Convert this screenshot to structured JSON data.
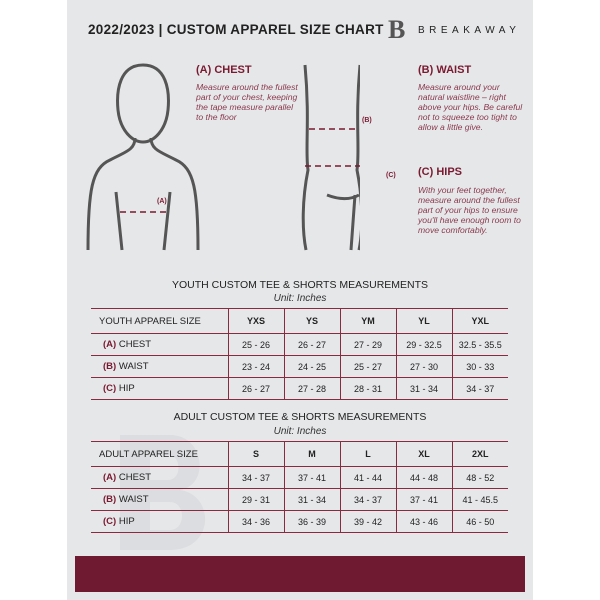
{
  "header": {
    "title": "2022/2023 | CUSTOM APPAREL SIZE CHART",
    "brand": "BREAKAWAY",
    "logo_letter": "B"
  },
  "guide": {
    "chest": {
      "title": "(A) CHEST",
      "marker": "(A)",
      "text": "Measure around the fullest part of your chest, keeping the tape measure parallel to the floor"
    },
    "waist": {
      "title": "(B) WAIST",
      "marker": "(B)",
      "text": "Measure around your natural waistline – right above your hips. Be careful not to squeeze too tight to allow a little give."
    },
    "hips": {
      "title": "(C) HIPS",
      "marker": "(C)",
      "text": "With your feet together, measure around the fullest part of your hips to ensure you'll have enough room to move comfortably."
    }
  },
  "youth": {
    "title": "YOUTH CUSTOM TEE & SHORTS MEASUREMENTS",
    "unit": "Unit: Inches",
    "header": "YOUTH APPAREL SIZE",
    "sizes": [
      "YXS",
      "YS",
      "YM",
      "YL",
      "YXL"
    ],
    "rows": [
      {
        "letter": "(A)",
        "label": "CHEST",
        "values": [
          "25 - 26",
          "26 - 27",
          "27 - 29",
          "29 - 32.5",
          "32.5 - 35.5"
        ]
      },
      {
        "letter": "(B)",
        "label": "WAIST",
        "values": [
          "23 - 24",
          "24 - 25",
          "25 - 27",
          "27 - 30",
          "30 - 33"
        ]
      },
      {
        "letter": "(C)",
        "label": "HIP",
        "values": [
          "26 - 27",
          "27 - 28",
          "28 - 31",
          "31 - 34",
          "34 - 37"
        ]
      }
    ]
  },
  "adult": {
    "title": "ADULT CUSTOM TEE & SHORTS MEASUREMENTS",
    "unit": "Unit: Inches",
    "header": "ADULT APPAREL SIZE",
    "sizes": [
      "S",
      "M",
      "L",
      "XL",
      "2XL"
    ],
    "rows": [
      {
        "letter": "(A)",
        "label": "CHEST",
        "values": [
          "34 - 37",
          "37 - 41",
          "41 - 44",
          "44 - 48",
          "48 - 52"
        ]
      },
      {
        "letter": "(B)",
        "label": "WAIST",
        "values": [
          "29 - 31",
          "31 - 34",
          "34 - 37",
          "37 - 41",
          "41 - 45.5"
        ]
      },
      {
        "letter": "(C)",
        "label": "HIP",
        "values": [
          "34 - 36",
          "36 - 39",
          "39 - 42",
          "43 - 46",
          "46 - 50"
        ]
      }
    ]
  },
  "colors": {
    "accent": "#7a1a31",
    "panel": "#e6e7e9",
    "footer": "#6f1a30"
  }
}
